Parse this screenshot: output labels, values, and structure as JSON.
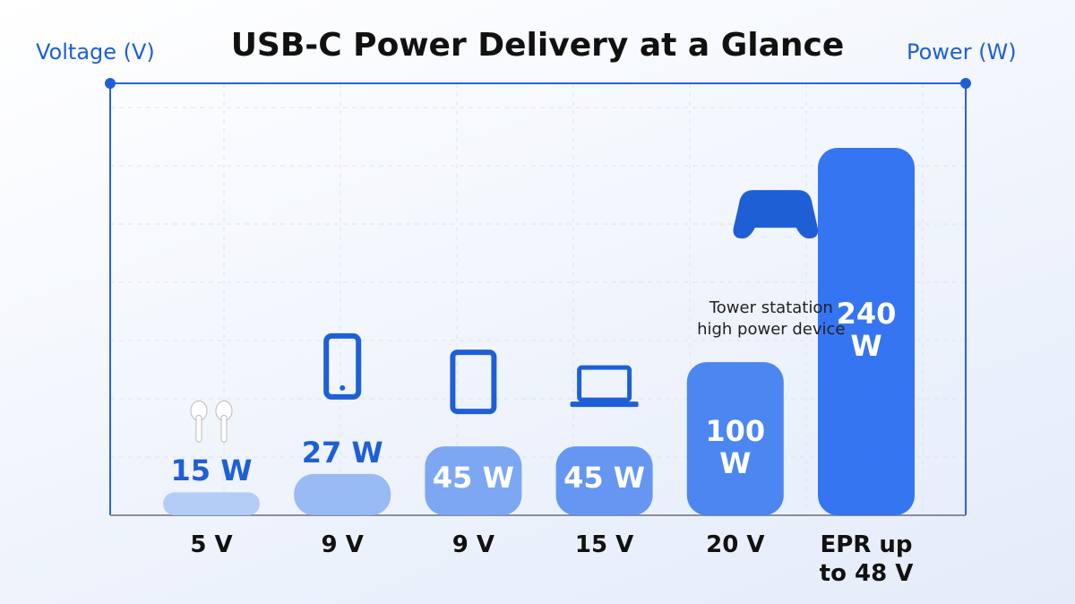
{
  "chart_data": {
    "type": "bar",
    "title": "USB-C Power Delivery at a Glance",
    "y_label": "Voltage (V)",
    "y2_label": "Power (W)",
    "categories": [
      "5 V",
      "9 V",
      "9 V",
      "15 V",
      "20 V",
      "EPR up to 48 V"
    ],
    "values": [
      15,
      27,
      45,
      45,
      100,
      240
    ],
    "value_labels": [
      "15 W",
      "27 W",
      "45 W",
      "45 W",
      "100 W",
      "240 W"
    ],
    "colors": [
      "#afcaf6",
      "#93b6f4",
      "#77a2f2",
      "#5e90f0",
      "#427ff0",
      "#2b6ef1"
    ],
    "annotation": "Tower statation high power device",
    "grid": true
  }
}
